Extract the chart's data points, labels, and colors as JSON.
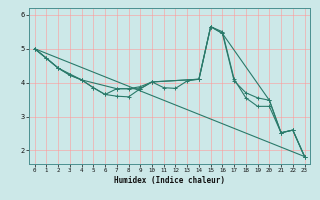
{
  "title": "",
  "xlabel": "Humidex (Indice chaleur)",
  "background_color": "#cce8e8",
  "grid_color": "#ff9999",
  "line_color": "#2a7a6a",
  "xlim": [
    -0.5,
    23.5
  ],
  "ylim": [
    1.6,
    6.2
  ],
  "yticks": [
    2,
    3,
    4,
    5,
    6
  ],
  "xticks": [
    0,
    1,
    2,
    3,
    4,
    5,
    6,
    7,
    8,
    9,
    10,
    11,
    12,
    13,
    14,
    15,
    16,
    17,
    18,
    19,
    20,
    21,
    22,
    23
  ],
  "series": [
    {
      "x": [
        0,
        1,
        2,
        3,
        4,
        5,
        6,
        7,
        8,
        9,
        10,
        11,
        12,
        13,
        14,
        15,
        16,
        17,
        18,
        19,
        20,
        21,
        22,
        23
      ],
      "y": [
        5.0,
        4.72,
        4.43,
        4.22,
        4.08,
        3.85,
        3.65,
        3.6,
        3.58,
        3.82,
        4.02,
        3.85,
        3.83,
        4.05,
        4.1,
        5.65,
        5.5,
        4.1,
        3.55,
        3.3,
        3.3,
        2.52,
        2.6,
        1.82
      ]
    },
    {
      "x": [
        0,
        1,
        2,
        3,
        4,
        5,
        6,
        7,
        8,
        9,
        10,
        14,
        15,
        16,
        17,
        18,
        19,
        20,
        21,
        22,
        23
      ],
      "y": [
        5.0,
        4.72,
        4.43,
        4.22,
        4.08,
        3.85,
        3.65,
        3.82,
        3.82,
        3.88,
        4.02,
        4.1,
        5.65,
        5.45,
        4.05,
        3.7,
        3.55,
        3.48,
        2.52,
        2.6,
        1.82
      ]
    },
    {
      "x": [
        0,
        2,
        4,
        7,
        9,
        10,
        14,
        15,
        16,
        20,
        21,
        22,
        23
      ],
      "y": [
        5.0,
        4.43,
        4.08,
        3.82,
        3.82,
        4.02,
        4.1,
        5.65,
        5.45,
        3.48,
        2.52,
        2.6,
        1.82
      ]
    },
    {
      "x": [
        0,
        23
      ],
      "y": [
        5.0,
        1.82
      ]
    }
  ]
}
